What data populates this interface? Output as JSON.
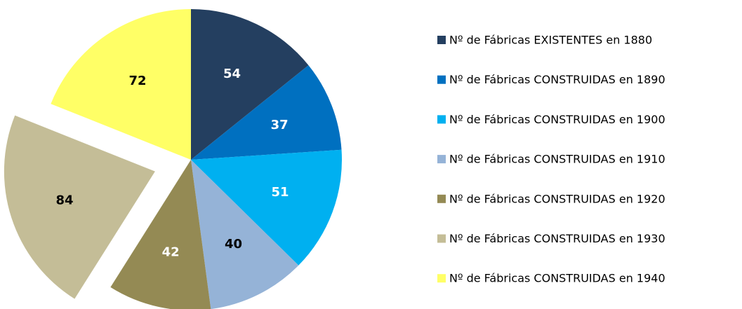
{
  "chart_data": {
    "type": "pie",
    "categories": [
      "Nº de Fábricas EXISTENTES en 1880",
      "Nº de Fábricas CONSTRUIDAS en 1890",
      "Nº de Fábricas CONSTRUIDAS en 1900",
      "Nº de Fábricas CONSTRUIDAS en 1910",
      "Nº de Fábricas CONSTRUIDAS en 1920",
      "Nº de Fábricas CONSTRUIDAS en 1930",
      "Nº de Fábricas CONSTRUIDAS en 1940"
    ],
    "values": [
      54,
      37,
      51,
      40,
      42,
      84,
      72
    ],
    "colors": [
      "#243f60",
      "#0070c0",
      "#00b0f0",
      "#95b3d7",
      "#948a54",
      "#c4bd97",
      "#ffff66"
    ],
    "explode": [
      0,
      0,
      0,
      0,
      0,
      0.25,
      0
    ],
    "legend": "right"
  }
}
